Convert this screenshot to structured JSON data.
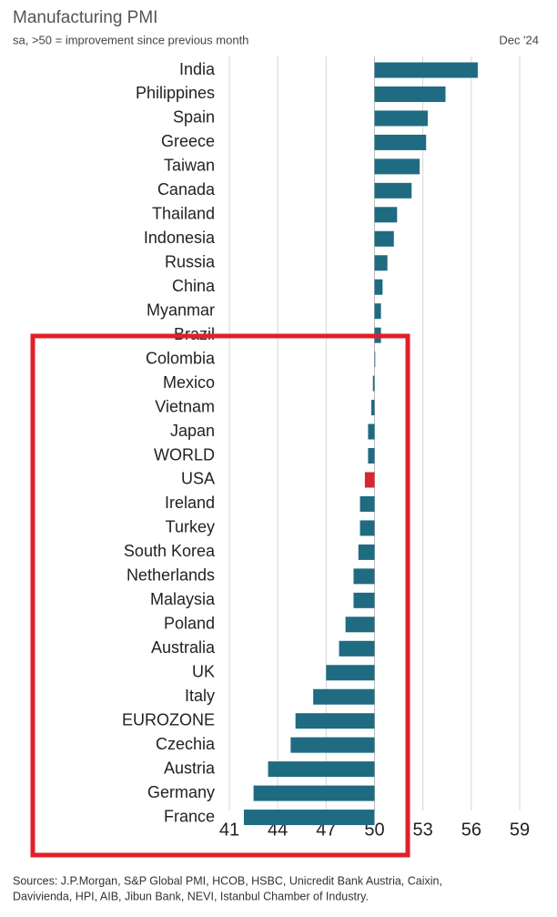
{
  "chart_data": {
    "type": "hbar",
    "title": "Manufacturing PMI",
    "subtitle": "sa, >50 = improvement since previous month",
    "date": "Dec '24",
    "source": [
      "Sources: J.P.Morgan, S&P Global PMI, HCOB, HSBC, Unicredit Bank Austria, Caixin,",
      "Davivienda, HPI, AIB, Jibun Bank, NEVI, Istanbul Chamber of Industry."
    ],
    "categories": [
      "India",
      "Philippines",
      "Spain",
      "Greece",
      "Taiwan",
      "Canada",
      "Thailand",
      "Indonesia",
      "Russia",
      "China",
      "Myanmar",
      "Brazil",
      "Colombia",
      "Mexico",
      "Vietnam",
      "Japan",
      "WORLD",
      "USA",
      "Ireland",
      "Turkey",
      "South Korea",
      "Netherlands",
      "Malaysia",
      "Poland",
      "Australia",
      "UK",
      "Italy",
      "EUROZONE",
      "Czechia",
      "Austria",
      "Germany",
      "France"
    ],
    "values": [
      56.4,
      54.4,
      53.3,
      53.2,
      52.8,
      52.3,
      51.4,
      51.2,
      50.8,
      50.5,
      50.4,
      50.4,
      50.0,
      49.9,
      49.8,
      49.6,
      49.6,
      49.4,
      49.1,
      49.1,
      49.0,
      48.7,
      48.7,
      48.2,
      47.8,
      47.0,
      46.2,
      45.1,
      44.8,
      43.4,
      42.5,
      41.9
    ],
    "color": "#1f6b82",
    "highlight": {
      "category": "USA",
      "color": "#d9262c"
    },
    "baseline": 50,
    "xlim": [
      41,
      59
    ],
    "xticks": [
      41,
      44,
      47,
      50,
      53,
      56,
      59
    ],
    "grid": true
  }
}
